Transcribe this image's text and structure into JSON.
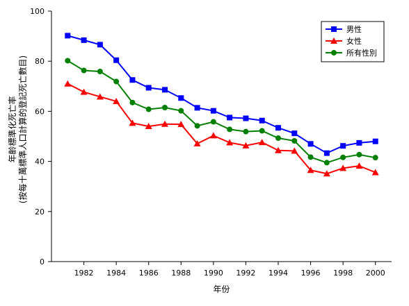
{
  "chart_data": {
    "type": "line",
    "title": "",
    "xlabel": "年份",
    "ylabel_lines": [
      "年齡標準化死亡率",
      "(按每十萬標準人口計算的登記死亡數目)"
    ],
    "x": [
      1981,
      1982,
      1983,
      1984,
      1985,
      1986,
      1987,
      1988,
      1989,
      1990,
      1991,
      1992,
      1993,
      1994,
      1995,
      1996,
      1997,
      1998,
      1999,
      2000
    ],
    "xlim": [
      1980,
      2001
    ],
    "xticks": [
      1982,
      1984,
      1986,
      1988,
      1990,
      1992,
      1994,
      1996,
      1998,
      2000
    ],
    "ylim": [
      0,
      100
    ],
    "yticks": [
      0,
      20,
      40,
      60,
      80,
      100
    ],
    "grid": false,
    "legend_position": "top-right",
    "series": [
      {
        "name": "男性",
        "color": "#0000ff",
        "marker": "square",
        "values": [
          90.2,
          88.4,
          86.6,
          80.4,
          72.5,
          69.4,
          68.6,
          65.3,
          61.4,
          60.2,
          57.5,
          57.2,
          56.3,
          53.4,
          51.2,
          47.0,
          43.3,
          46.2,
          47.4,
          48.0
        ]
      },
      {
        "name": "女性",
        "color": "#ff0000",
        "marker": "triangle",
        "values": [
          71.0,
          67.7,
          65.8,
          64.0,
          55.3,
          54.0,
          54.9,
          54.8,
          47.1,
          50.3,
          47.5,
          46.3,
          47.6,
          44.4,
          44.2,
          36.5,
          35.1,
          37.3,
          38.2,
          35.6
        ]
      },
      {
        "name": "所有性別",
        "color": "#008000",
        "marker": "circle",
        "values": [
          80.2,
          76.3,
          75.9,
          71.9,
          63.5,
          60.8,
          61.5,
          60.2,
          54.2,
          55.8,
          52.8,
          51.9,
          52.2,
          49.3,
          48.2,
          41.7,
          39.5,
          41.6,
          42.7,
          41.5
        ]
      }
    ]
  }
}
